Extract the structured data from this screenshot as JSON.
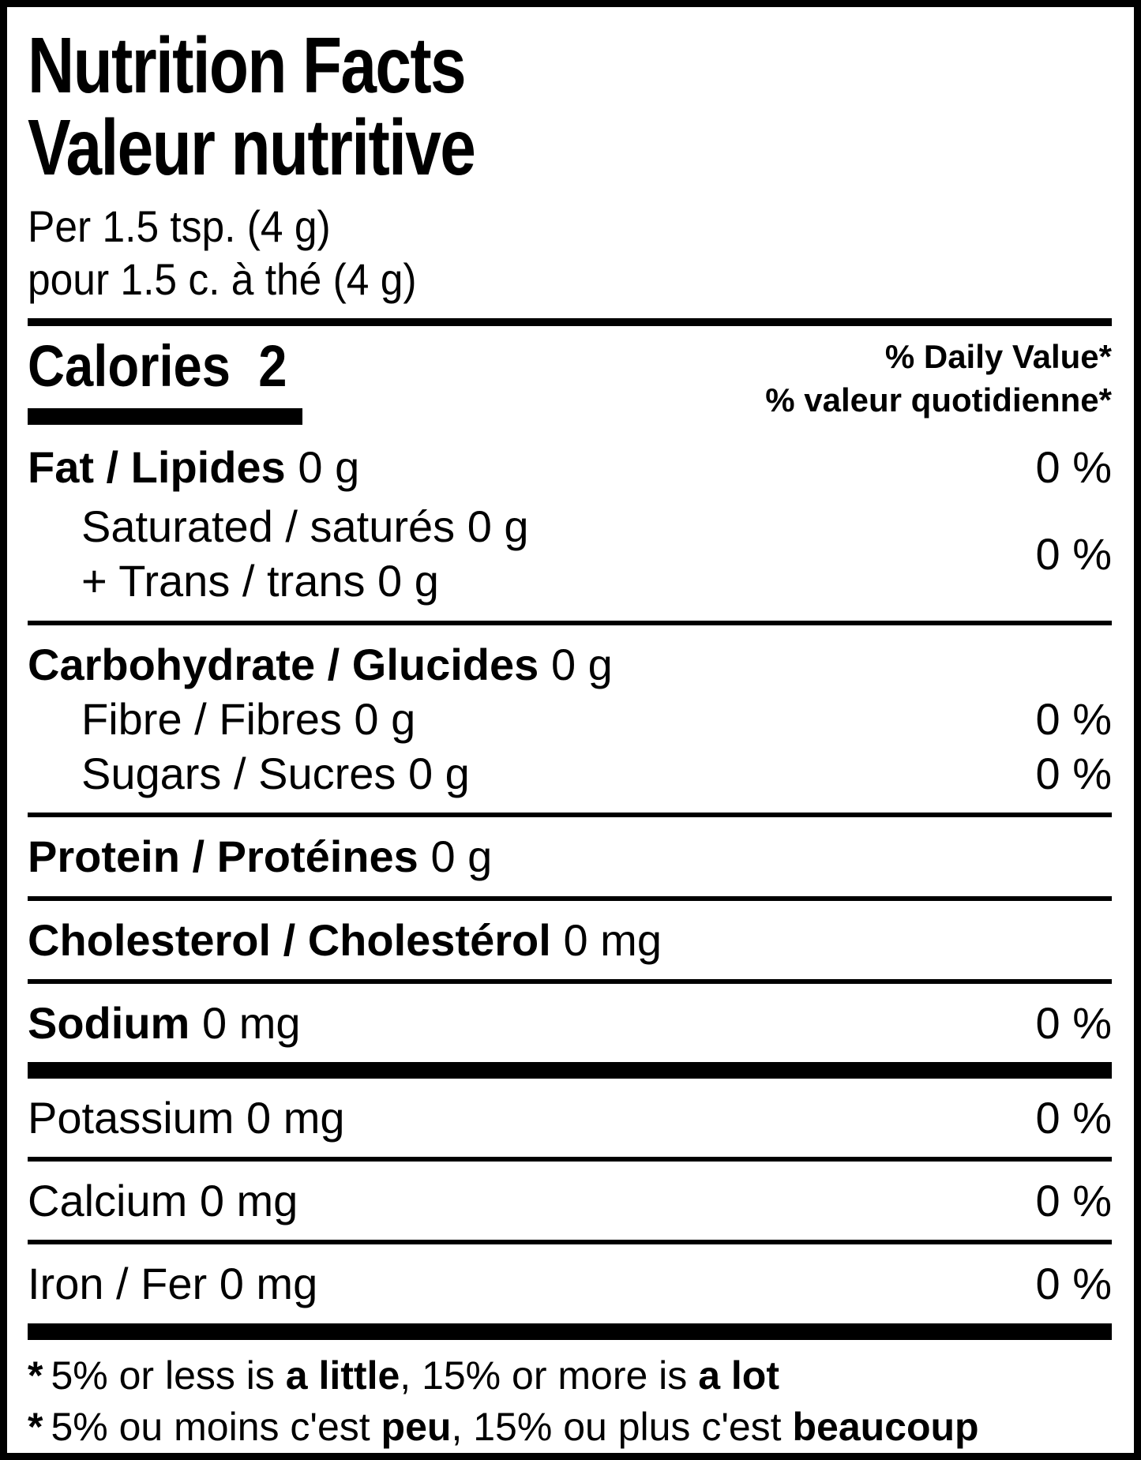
{
  "label": {
    "header": {
      "title_en": "Nutrition Facts",
      "title_fr": "Valeur nutritive",
      "serving_en": "Per 1.5 tsp. (4 g)",
      "serving_fr": "pour 1.5 c. à thé (4 g)"
    },
    "calories": {
      "label": "Calories",
      "value": "2"
    },
    "daily_value_header": {
      "en": "% Daily Value*",
      "fr": "% valeur quotidienne*"
    },
    "nutrients": {
      "fat": {
        "name": "Fat / Lipides",
        "amount": "0 g",
        "dv": "0 %"
      },
      "saturated": {
        "line": "Saturated / saturés 0 g"
      },
      "trans": {
        "line": "+ Trans / trans 0 g"
      },
      "sat_trans_dv": "0 %",
      "carbohydrate": {
        "name": "Carbohydrate / Glucides",
        "amount": "0 g"
      },
      "fibre": {
        "line": "Fibre / Fibres 0 g",
        "dv": "0 %"
      },
      "sugars": {
        "line": "Sugars / Sucres 0 g",
        "dv": "0 %"
      },
      "protein": {
        "name": "Protein / Protéines",
        "amount": "0 g"
      },
      "cholesterol": {
        "name": "Cholesterol / Cholestérol",
        "amount": "0 mg"
      },
      "sodium": {
        "name": "Sodium",
        "amount": "0 mg",
        "dv": "0 %"
      },
      "potassium": {
        "line": "Potassium 0 mg",
        "dv": "0 %"
      },
      "calcium": {
        "line": "Calcium 0 mg",
        "dv": "0 %"
      },
      "iron": {
        "line": "Iron / Fer 0 mg",
        "dv": "0 %"
      }
    },
    "footnote_en": {
      "star": "*",
      "part1": "5% or less is ",
      "bold1": "a little",
      "part2": ", 15% or more is ",
      "bold2": "a lot"
    },
    "footnote_fr": {
      "star": "*",
      "part1": "5% ou moins c'est ",
      "bold1": "peu",
      "part2": ", 15% ou plus c'est ",
      "bold2": "beaucoup"
    },
    "colors": {
      "ink": "#000000",
      "background": "#ffffff"
    }
  }
}
